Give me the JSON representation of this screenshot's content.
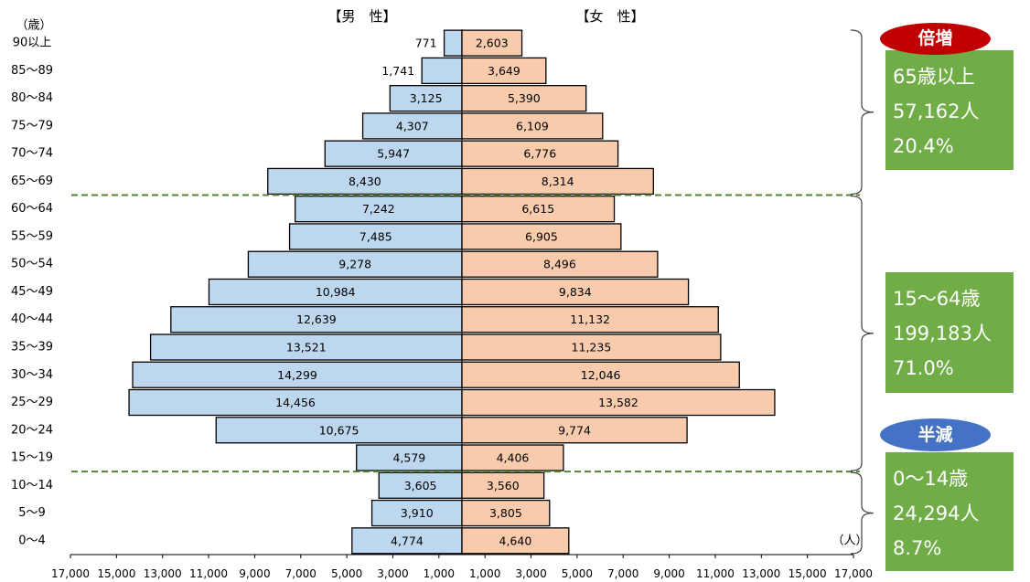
{
  "chart_data": {
    "type": "bar",
    "orientation": "horizontal",
    "categories": [
      "90以上",
      "85～89",
      "80～84",
      "75～79",
      "70～74",
      "65～69",
      "60～64",
      "55～59",
      "50～54",
      "45～49",
      "40～44",
      "35～39",
      "30～34",
      "25～29",
      "20～24",
      "15～19",
      "10～14",
      "5～9",
      "0～4"
    ],
    "series": [
      {
        "name": "【男　性】",
        "color": "#bdd7ee",
        "values": [
          771,
          1741,
          3125,
          4307,
          5947,
          8430,
          7242,
          7485,
          9278,
          10984,
          12639,
          13521,
          14299,
          14456,
          10675,
          4579,
          3605,
          3910,
          4774
        ]
      },
      {
        "name": "【女　性】",
        "color": "#f8cbad",
        "values": [
          2603,
          3649,
          5390,
          6109,
          6776,
          8314,
          6615,
          6905,
          8496,
          9834,
          11132,
          11235,
          12046,
          13582,
          9774,
          4406,
          3560,
          3805,
          4640
        ]
      }
    ],
    "ylabel": "（歳）",
    "xlabel": "（人）",
    "xlim": [
      -17000,
      17000
    ],
    "x_ticks": [
      -17000,
      -15000,
      -13000,
      -11000,
      -9000,
      -7000,
      -5000,
      -3000,
      -1000,
      1000,
      3000,
      5000,
      7000,
      9000,
      11000,
      13000,
      15000,
      17000
    ],
    "x_tick_labels": [
      "17,000",
      "15,000",
      "13,000",
      "11,000",
      "9,000",
      "7,000",
      "5,000",
      "3,000",
      "1,000",
      "1,000",
      "3,000",
      "5,000",
      "7,000",
      "9,000",
      "11,000",
      "13,000",
      "15,000",
      "17,000"
    ],
    "data_labels": true,
    "grid": false,
    "legend": "none",
    "bar_border_color": "#000000",
    "divider_color": "#548235"
  },
  "annotations": [
    {
      "rows": [
        0,
        5
      ],
      "badge": "倍増",
      "badge_color": "#c00000",
      "box_color": "#70ad47",
      "lines": [
        "65歳以上",
        "57,162人",
        "20.4%"
      ]
    },
    {
      "rows": [
        6,
        15
      ],
      "box_color": "#70ad47",
      "lines": [
        "15～64歳",
        "199,183人",
        "71.0%"
      ]
    },
    {
      "rows": [
        16,
        18
      ],
      "badge": "半減",
      "badge_color": "#4472c4",
      "box_color": "#70ad47",
      "lines": [
        "0～14歳",
        "24,294人",
        "8.7%"
      ]
    }
  ]
}
